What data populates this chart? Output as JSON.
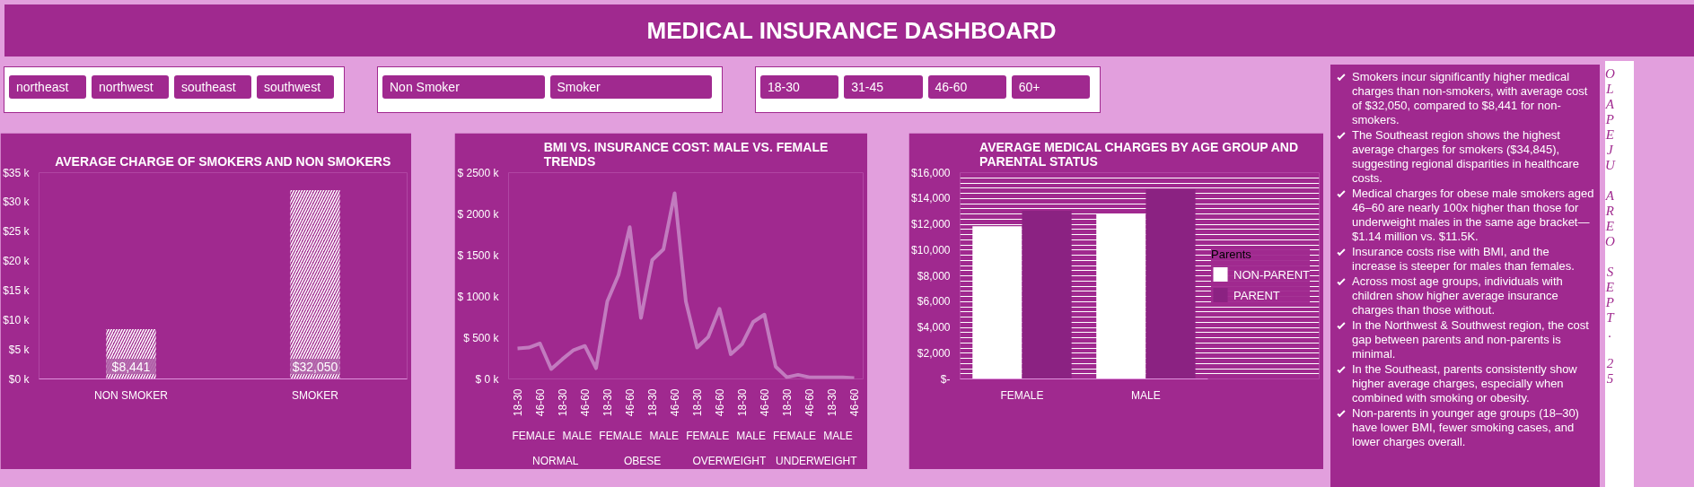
{
  "chart_data": [
    {
      "type": "other",
      "title": "MEDICAL INSURANCE DASHBOARD"
    },
    {
      "type": "other",
      "annotations": [
        "northeast",
        "northwest",
        "southeast",
        "southwest"
      ]
    },
    {
      "type": "other",
      "annotations": [
        "Non Smoker",
        "Smoker"
      ]
    },
    {
      "type": "other",
      "annotations": [
        "18-30",
        "31-45",
        "46-60",
        "60+"
      ]
    },
    {
      "type": "bar",
      "title": "AVERAGE CHARGE OF SMOKERS AND NON SMOKERS",
      "categories": [
        "NON SMOKER",
        "SMOKER"
      ],
      "values": [
        8441,
        32050
      ],
      "color": "#ffffff",
      "value_labels": [
        "$8,441",
        "$32,050"
      ],
      "ylim": [
        0,
        35000
      ],
      "yticks": [
        {
          "value": 0,
          "label": "$0 k"
        },
        {
          "value": 5000,
          "label": "$5 k"
        },
        {
          "value": 10000,
          "label": "$10 k"
        },
        {
          "value": 15000,
          "label": "$15 k"
        },
        {
          "value": 20000,
          "label": "$20 k"
        },
        {
          "value": 25000,
          "label": "$25 k"
        },
        {
          "value": 30000,
          "label": "$30 k"
        },
        {
          "value": 35000,
          "label": "$35 k"
        }
      ]
    },
    {
      "type": "line",
      "title": "BMI VS. INSURANCE COST: MALE VS. FEMALE TRENDS",
      "categories": [
        "18-30",
        null,
        "46-60",
        null,
        "18-30",
        null,
        "46-60",
        null,
        "18-30",
        null,
        "46-60",
        null,
        "18-30",
        null,
        "46-60",
        null,
        "18-30",
        null,
        "46-60",
        null,
        "18-30",
        null,
        "46-60",
        null,
        "18-30",
        null,
        "46-60",
        null,
        "18-30",
        null,
        "46-60"
      ],
      "values": [
        370000,
        380000,
        430000,
        120000,
        240000,
        350000,
        400000,
        130000,
        940000,
        1260000,
        1840000,
        740000,
        1440000,
        1570000,
        2250000,
        940000,
        380000,
        510000,
        850000,
        300000,
        420000,
        690000,
        780000,
        150000,
        20000,
        50000,
        20000,
        20000,
        20000,
        20000,
        10000
      ],
      "color": "#c27bbf",
      "ylim": [
        0,
        2500000
      ],
      "yticks": [
        {
          "value": 0,
          "label": "$ 0 k"
        },
        {
          "value": 500000,
          "label": "$ 500 k"
        },
        {
          "value": 1000000,
          "label": "$ 1000 k"
        },
        {
          "value": 1500000,
          "label": "$ 1500 k"
        },
        {
          "value": 2000000,
          "label": "$ 2000 k"
        },
        {
          "value": 2500000,
          "label": "$ 2500 k"
        }
      ],
      "annotations": [
        "FEMALE",
        "MALE",
        "FEMALE",
        "MALE",
        "FEMALE",
        "MALE",
        "FEMALE",
        "MALE",
        "NORMAL",
        "OBESE",
        "OVERWEIGHT",
        "UNDERWEIGHT"
      ]
    },
    {
      "type": "bar",
      "title": "AVERAGE MEDICAL CHARGES BY AGE GROUP AND PARENTAL STATUS",
      "categories": [
        "FEMALE",
        "MALE"
      ],
      "series": [
        {
          "name": "NON-PARENT",
          "color": "#ffffff",
          "values": [
            11850,
            12800
          ]
        },
        {
          "name": "PARENT",
          "color": "#8b2282",
          "values": [
            13050,
            14700
          ]
        }
      ],
      "ylim": [
        0,
        16000
      ],
      "yticks": [
        {
          "value": 0,
          "label": "$-"
        },
        {
          "value": 2000,
          "label": "$2,000"
        },
        {
          "value": 4000,
          "label": "$4,000"
        },
        {
          "value": 6000,
          "label": "$6,000"
        },
        {
          "value": 8000,
          "label": "$8,000"
        },
        {
          "value": 10000,
          "label": "$10,000"
        },
        {
          "value": 12000,
          "label": "$12,000"
        },
        {
          "value": 14000,
          "label": "$14,000"
        },
        {
          "value": 16000,
          "label": "$16,000"
        }
      ],
      "grid": "y",
      "legend": "right",
      "legend_title": "Parents"
    },
    {
      "type": "other",
      "annotations": [
        "Smokers incur significantly higher medical charges than non-smokers, with average cost of $32,050, compared to $8,441 for non-smokers.",
        "The Southeast region shows the highest average charges for smokers ($34,845), suggesting regional disparities in healthcare costs.",
        "Medical charges for obese male smokers aged 46–60 are nearly 100x higher than those for underweight males in the same age bracket—$1.14 million vs. $11.5K.",
        "Insurance costs rise with BMI, and the increase is steeper for males than females.",
        "Across most age groups, individuals with children show higher average insurance charges than those without.",
        "In the Northwest & Southwest region, the cost gap between parents and non-parents is minimal.",
        "In the Southeast, parents consistently show higher average charges, especially when combined with smoking or obesity.",
        "Non-parents in younger age groups (18–30) have lower BMI, fewer smoking cases, and lower charges overall."
      ]
    },
    {
      "type": "other",
      "annotations": [
        "OLAPEJU AREO SEPT. 25"
      ]
    }
  ]
}
